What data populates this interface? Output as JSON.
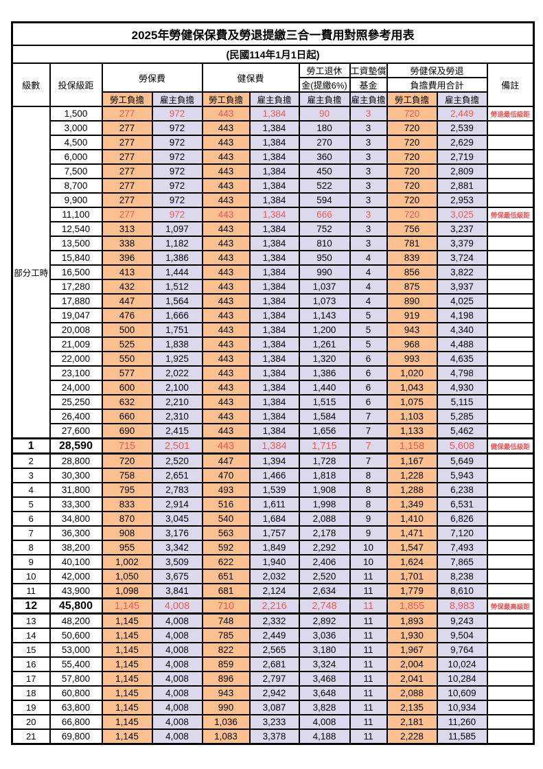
{
  "title": "2025年勞健保保費及勞退提繳三合一費用對照參考用表",
  "subtitle": "(民國114年1月1日起)",
  "header": {
    "level": "級數",
    "bracket": "投保級距",
    "labor_insurance": "勞保費",
    "health_insurance": "健保費",
    "pension_line1": "勞工退休",
    "pension_line2": "金(提繳6%)",
    "wage_fund_line1": "工資墊償",
    "wage_fund_line2": "基金",
    "total_line1": "勞健保及勞退",
    "total_line2": "負擔費用合計",
    "remark": "備註",
    "worker_share": "勞工負擔",
    "employer_share": "雇主負擔"
  },
  "part_time_label": "部分工時",
  "colors": {
    "worker_bg": "#FAC090",
    "employer_bg": "#DCD9EC",
    "highlight_red": "#F25757"
  },
  "rows": [
    {
      "level": "",
      "bracket": "1,500",
      "values": [
        "277",
        "972",
        "443",
        "1,384",
        "90",
        "3",
        "720",
        "2,449"
      ],
      "remark": "勞退最低級距",
      "red": true,
      "bold": false
    },
    {
      "level": "",
      "bracket": "3,000",
      "values": [
        "277",
        "972",
        "443",
        "1,384",
        "180",
        "3",
        "720",
        "2,539"
      ],
      "remark": "",
      "red": false,
      "bold": false
    },
    {
      "level": "",
      "bracket": "4,500",
      "values": [
        "277",
        "972",
        "443",
        "1,384",
        "270",
        "3",
        "720",
        "2,629"
      ],
      "remark": "",
      "red": false,
      "bold": false
    },
    {
      "level": "",
      "bracket": "6,000",
      "values": [
        "277",
        "972",
        "443",
        "1,384",
        "360",
        "3",
        "720",
        "2,719"
      ],
      "remark": "",
      "red": false,
      "bold": false
    },
    {
      "level": "",
      "bracket": "7,500",
      "values": [
        "277",
        "972",
        "443",
        "1,384",
        "450",
        "3",
        "720",
        "2,809"
      ],
      "remark": "",
      "red": false,
      "bold": false
    },
    {
      "level": "",
      "bracket": "8,700",
      "values": [
        "277",
        "972",
        "443",
        "1,384",
        "522",
        "3",
        "720",
        "2,881"
      ],
      "remark": "",
      "red": false,
      "bold": false
    },
    {
      "level": "",
      "bracket": "9,900",
      "values": [
        "277",
        "972",
        "443",
        "1,384",
        "594",
        "3",
        "720",
        "2,953"
      ],
      "remark": "",
      "red": false,
      "bold": false
    },
    {
      "level": "",
      "bracket": "11,100",
      "values": [
        "277",
        "972",
        "443",
        "1,384",
        "666",
        "3",
        "720",
        "3,025"
      ],
      "remark": "勞保最低級距",
      "red": true,
      "bold": false
    },
    {
      "level": "",
      "bracket": "12,540",
      "values": [
        "313",
        "1,097",
        "443",
        "1,384",
        "752",
        "3",
        "756",
        "3,237"
      ],
      "remark": "",
      "red": false,
      "bold": false
    },
    {
      "level": "",
      "bracket": "13,500",
      "values": [
        "338",
        "1,182",
        "443",
        "1,384",
        "810",
        "3",
        "781",
        "3,379"
      ],
      "remark": "",
      "red": false,
      "bold": false
    },
    {
      "level": "",
      "bracket": "15,840",
      "values": [
        "396",
        "1,386",
        "443",
        "1,384",
        "950",
        "4",
        "839",
        "3,724"
      ],
      "remark": "",
      "red": false,
      "bold": false
    },
    {
      "level": "",
      "bracket": "16,500",
      "values": [
        "413",
        "1,444",
        "443",
        "1,384",
        "990",
        "4",
        "856",
        "3,822"
      ],
      "remark": "",
      "red": false,
      "bold": false
    },
    {
      "level": "",
      "bracket": "17,280",
      "values": [
        "432",
        "1,512",
        "443",
        "1,384",
        "1,037",
        "4",
        "875",
        "3,937"
      ],
      "remark": "",
      "red": false,
      "bold": false
    },
    {
      "level": "",
      "bracket": "17,880",
      "values": [
        "447",
        "1,564",
        "443",
        "1,384",
        "1,073",
        "4",
        "890",
        "4,025"
      ],
      "remark": "",
      "red": false,
      "bold": false
    },
    {
      "level": "",
      "bracket": "19,047",
      "values": [
        "476",
        "1,666",
        "443",
        "1,384",
        "1,143",
        "5",
        "919",
        "4,198"
      ],
      "remark": "",
      "red": false,
      "bold": false
    },
    {
      "level": "",
      "bracket": "20,008",
      "values": [
        "500",
        "1,751",
        "443",
        "1,384",
        "1,200",
        "5",
        "943",
        "4,340"
      ],
      "remark": "",
      "red": false,
      "bold": false
    },
    {
      "level": "",
      "bracket": "21,009",
      "values": [
        "525",
        "1,838",
        "443",
        "1,384",
        "1,261",
        "5",
        "968",
        "4,488"
      ],
      "remark": "",
      "red": false,
      "bold": false
    },
    {
      "level": "",
      "bracket": "22,000",
      "values": [
        "550",
        "1,925",
        "443",
        "1,384",
        "1,320",
        "6",
        "993",
        "4,635"
      ],
      "remark": "",
      "red": false,
      "bold": false
    },
    {
      "level": "",
      "bracket": "23,100",
      "values": [
        "577",
        "2,022",
        "443",
        "1,384",
        "1,386",
        "6",
        "1,020",
        "4,798"
      ],
      "remark": "",
      "red": false,
      "bold": false
    },
    {
      "level": "",
      "bracket": "24,000",
      "values": [
        "600",
        "2,100",
        "443",
        "1,384",
        "1,440",
        "6",
        "1,043",
        "4,930"
      ],
      "remark": "",
      "red": false,
      "bold": false
    },
    {
      "level": "",
      "bracket": "25,250",
      "values": [
        "632",
        "2,210",
        "443",
        "1,384",
        "1,515",
        "6",
        "1,075",
        "5,115"
      ],
      "remark": "",
      "red": false,
      "bold": false
    },
    {
      "level": "",
      "bracket": "26,400",
      "values": [
        "660",
        "2,310",
        "443",
        "1,384",
        "1,584",
        "7",
        "1,103",
        "5,285"
      ],
      "remark": "",
      "red": false,
      "bold": false
    },
    {
      "level": "",
      "bracket": "27,600",
      "values": [
        "690",
        "2,415",
        "443",
        "1,384",
        "1,656",
        "7",
        "1,133",
        "5,462"
      ],
      "remark": "",
      "red": false,
      "bold": false
    },
    {
      "level": "1",
      "bracket": "28,590",
      "values": [
        "715",
        "2,501",
        "443",
        "1,384",
        "1,715",
        "7",
        "1,158",
        "5,608"
      ],
      "remark": "健保最低級距",
      "red": true,
      "bold": true
    },
    {
      "level": "2",
      "bracket": "28,800",
      "values": [
        "720",
        "2,520",
        "447",
        "1,394",
        "1,728",
        "7",
        "1,167",
        "5,649"
      ],
      "remark": "",
      "red": false,
      "bold": false
    },
    {
      "level": "3",
      "bracket": "30,300",
      "values": [
        "758",
        "2,651",
        "470",
        "1,466",
        "1,818",
        "8",
        "1,228",
        "5,943"
      ],
      "remark": "",
      "red": false,
      "bold": false
    },
    {
      "level": "4",
      "bracket": "31,800",
      "values": [
        "795",
        "2,783",
        "493",
        "1,539",
        "1,908",
        "8",
        "1,288",
        "6,238"
      ],
      "remark": "",
      "red": false,
      "bold": false
    },
    {
      "level": "5",
      "bracket": "33,300",
      "values": [
        "833",
        "2,914",
        "516",
        "1,611",
        "1,998",
        "8",
        "1,349",
        "6,531"
      ],
      "remark": "",
      "red": false,
      "bold": false
    },
    {
      "level": "6",
      "bracket": "34,800",
      "values": [
        "870",
        "3,045",
        "540",
        "1,684",
        "2,088",
        "9",
        "1,410",
        "6,826"
      ],
      "remark": "",
      "red": false,
      "bold": false
    },
    {
      "level": "7",
      "bracket": "36,300",
      "values": [
        "908",
        "3,176",
        "563",
        "1,757",
        "2,178",
        "9",
        "1,471",
        "7,120"
      ],
      "remark": "",
      "red": false,
      "bold": false
    },
    {
      "level": "8",
      "bracket": "38,200",
      "values": [
        "955",
        "3,342",
        "592",
        "1,849",
        "2,292",
        "10",
        "1,547",
        "7,493"
      ],
      "remark": "",
      "red": false,
      "bold": false
    },
    {
      "level": "9",
      "bracket": "40,100",
      "values": [
        "1,002",
        "3,509",
        "622",
        "1,940",
        "2,406",
        "10",
        "1,624",
        "7,865"
      ],
      "remark": "",
      "red": false,
      "bold": false
    },
    {
      "level": "10",
      "bracket": "42,000",
      "values": [
        "1,050",
        "3,675",
        "651",
        "2,032",
        "2,520",
        "11",
        "1,701",
        "8,238"
      ],
      "remark": "",
      "red": false,
      "bold": false
    },
    {
      "level": "11",
      "bracket": "43,900",
      "values": [
        "1,098",
        "3,841",
        "681",
        "2,124",
        "2,634",
        "11",
        "1,779",
        "8,610"
      ],
      "remark": "",
      "red": false,
      "bold": false
    },
    {
      "level": "12",
      "bracket": "45,800",
      "values": [
        "1,145",
        "4,008",
        "710",
        "2,216",
        "2,748",
        "11",
        "1,855",
        "8,983"
      ],
      "remark": "勞保最高級距",
      "red": true,
      "bold": true
    },
    {
      "level": "13",
      "bracket": "48,200",
      "values": [
        "1,145",
        "4,008",
        "748",
        "2,332",
        "2,892",
        "11",
        "1,893",
        "9,243"
      ],
      "remark": "",
      "red": false,
      "bold": false
    },
    {
      "level": "14",
      "bracket": "50,600",
      "values": [
        "1,145",
        "4,008",
        "785",
        "2,449",
        "3,036",
        "11",
        "1,930",
        "9,504"
      ],
      "remark": "",
      "red": false,
      "bold": false
    },
    {
      "level": "15",
      "bracket": "53,000",
      "values": [
        "1,145",
        "4,008",
        "822",
        "2,565",
        "3,180",
        "11",
        "1,967",
        "9,764"
      ],
      "remark": "",
      "red": false,
      "bold": false
    },
    {
      "level": "16",
      "bracket": "55,400",
      "values": [
        "1,145",
        "4,008",
        "859",
        "2,681",
        "3,324",
        "11",
        "2,004",
        "10,024"
      ],
      "remark": "",
      "red": false,
      "bold": false
    },
    {
      "level": "17",
      "bracket": "57,800",
      "values": [
        "1,145",
        "4,008",
        "896",
        "2,797",
        "3,468",
        "11",
        "2,041",
        "10,284"
      ],
      "remark": "",
      "red": false,
      "bold": false
    },
    {
      "level": "18",
      "bracket": "60,800",
      "values": [
        "1,145",
        "4,008",
        "943",
        "2,942",
        "3,648",
        "11",
        "2,088",
        "10,609"
      ],
      "remark": "",
      "red": false,
      "bold": false
    },
    {
      "level": "19",
      "bracket": "63,800",
      "values": [
        "1,145",
        "4,008",
        "990",
        "3,087",
        "3,828",
        "11",
        "2,135",
        "10,934"
      ],
      "remark": "",
      "red": false,
      "bold": false
    },
    {
      "level": "20",
      "bracket": "66,800",
      "values": [
        "1,145",
        "4,008",
        "1,036",
        "3,233",
        "4,008",
        "11",
        "2,181",
        "11,260"
      ],
      "remark": "",
      "red": false,
      "bold": false
    },
    {
      "level": "21",
      "bracket": "69,800",
      "values": [
        "1,145",
        "4,008",
        "1,083",
        "3,378",
        "4,188",
        "11",
        "2,228",
        "11,585"
      ],
      "remark": "",
      "red": false,
      "bold": false
    }
  ]
}
